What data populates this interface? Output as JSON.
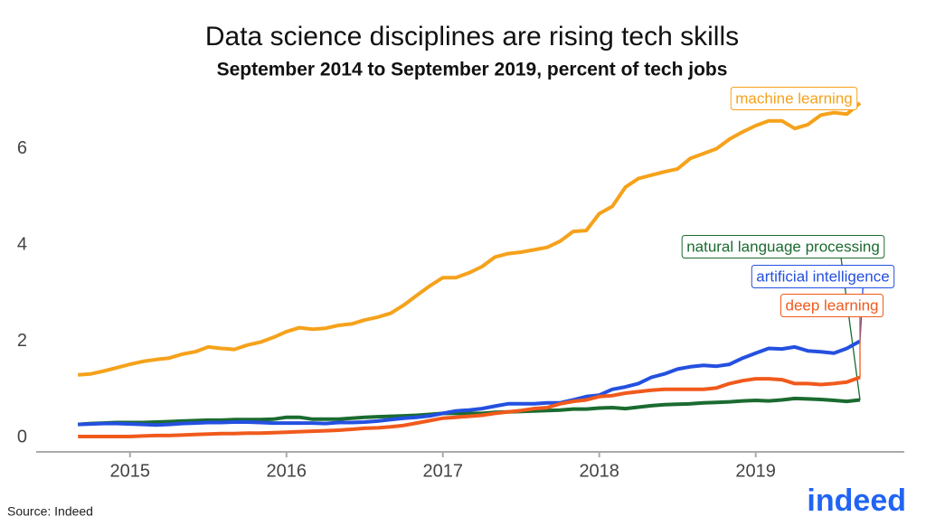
{
  "chart_data": {
    "type": "line",
    "title": "Data science disciplines are rising tech skills",
    "subtitle": "September 2014 to September 2019, percent of tech jobs",
    "source": "Source: Indeed",
    "logo": "indeed",
    "x": [
      2014.667,
      2014.75,
      2014.833,
      2014.917,
      2015,
      2015.083,
      2015.167,
      2015.25,
      2015.333,
      2015.417,
      2015.5,
      2015.583,
      2015.667,
      2015.75,
      2015.833,
      2015.917,
      2016,
      2016.083,
      2016.167,
      2016.25,
      2016.333,
      2016.417,
      2016.5,
      2016.583,
      2016.667,
      2016.75,
      2016.833,
      2016.917,
      2017,
      2017.083,
      2017.167,
      2017.25,
      2017.333,
      2017.417,
      2017.5,
      2017.583,
      2017.667,
      2017.75,
      2017.833,
      2017.917,
      2018,
      2018.083,
      2018.167,
      2018.25,
      2018.333,
      2018.417,
      2018.5,
      2018.583,
      2018.667,
      2018.75,
      2018.833,
      2018.917,
      2019,
      2019.083,
      2019.167,
      2019.25,
      2019.333,
      2019.417,
      2019.5,
      2019.583,
      2019.667
    ],
    "series": [
      {
        "name": "machine learning",
        "color": "#f5a21b",
        "values": [
          1.3,
          1.32,
          1.38,
          1.45,
          1.52,
          1.58,
          1.62,
          1.65,
          1.73,
          1.78,
          1.88,
          1.85,
          1.83,
          1.92,
          1.98,
          2.08,
          2.2,
          2.28,
          2.25,
          2.27,
          2.33,
          2.36,
          2.44,
          2.5,
          2.58,
          2.75,
          2.95,
          3.15,
          3.32,
          3.32,
          3.42,
          3.55,
          3.75,
          3.82,
          3.85,
          3.9,
          3.95,
          4.08,
          4.28,
          4.3,
          4.65,
          4.8,
          5.2,
          5.38,
          5.45,
          5.52,
          5.58,
          5.8,
          5.9,
          6.0,
          6.2,
          6.35,
          6.48,
          6.58,
          6.58,
          6.42,
          6.5,
          6.7,
          6.75,
          6.72,
          6.95
        ]
      },
      {
        "name": "natural language processing",
        "color": "#1b6b30",
        "values": [
          0.27,
          0.29,
          0.3,
          0.31,
          0.31,
          0.31,
          0.32,
          0.33,
          0.34,
          0.35,
          0.36,
          0.36,
          0.37,
          0.37,
          0.37,
          0.38,
          0.42,
          0.42,
          0.38,
          0.38,
          0.38,
          0.4,
          0.42,
          0.43,
          0.44,
          0.45,
          0.46,
          0.48,
          0.5,
          0.5,
          0.5,
          0.5,
          0.52,
          0.53,
          0.54,
          0.55,
          0.56,
          0.57,
          0.59,
          0.59,
          0.61,
          0.62,
          0.6,
          0.63,
          0.66,
          0.68,
          0.69,
          0.7,
          0.72,
          0.73,
          0.74,
          0.76,
          0.77,
          0.76,
          0.78,
          0.81,
          0.8,
          0.79,
          0.77,
          0.75,
          0.78
        ]
      },
      {
        "name": "artificial intelligence",
        "color": "#2450e0",
        "values": [
          0.27,
          0.28,
          0.29,
          0.29,
          0.28,
          0.27,
          0.26,
          0.27,
          0.29,
          0.3,
          0.31,
          0.31,
          0.32,
          0.32,
          0.31,
          0.3,
          0.3,
          0.3,
          0.3,
          0.29,
          0.31,
          0.31,
          0.32,
          0.34,
          0.37,
          0.4,
          0.42,
          0.45,
          0.5,
          0.55,
          0.57,
          0.6,
          0.65,
          0.7,
          0.7,
          0.7,
          0.72,
          0.72,
          0.78,
          0.85,
          0.88,
          1.0,
          1.05,
          1.12,
          1.25,
          1.32,
          1.42,
          1.47,
          1.5,
          1.48,
          1.52,
          1.65,
          1.75,
          1.85,
          1.84,
          1.88,
          1.8,
          1.78,
          1.75,
          1.85,
          2.0
        ]
      },
      {
        "name": "deep learning",
        "color": "#f05a1c",
        "values": [
          0.02,
          0.02,
          0.02,
          0.02,
          0.02,
          0.03,
          0.04,
          0.04,
          0.05,
          0.06,
          0.07,
          0.08,
          0.08,
          0.09,
          0.09,
          0.1,
          0.11,
          0.12,
          0.13,
          0.14,
          0.15,
          0.17,
          0.19,
          0.2,
          0.22,
          0.25,
          0.3,
          0.35,
          0.4,
          0.42,
          0.44,
          0.46,
          0.5,
          0.53,
          0.56,
          0.6,
          0.62,
          0.7,
          0.75,
          0.78,
          0.85,
          0.87,
          0.92,
          0.95,
          0.98,
          1.0,
          1.0,
          1.0,
          1.0,
          1.03,
          1.12,
          1.18,
          1.22,
          1.22,
          1.2,
          1.12,
          1.12,
          1.1,
          1.12,
          1.15,
          1.25
        ]
      }
    ],
    "xlim": [
      2014.4,
      2019.95
    ],
    "xticks": [
      2015,
      2016,
      2017,
      2018,
      2019
    ],
    "ylim": [
      -0.3,
      7.4
    ],
    "yticks": [
      0,
      2,
      4,
      6
    ],
    "grid": false
  }
}
